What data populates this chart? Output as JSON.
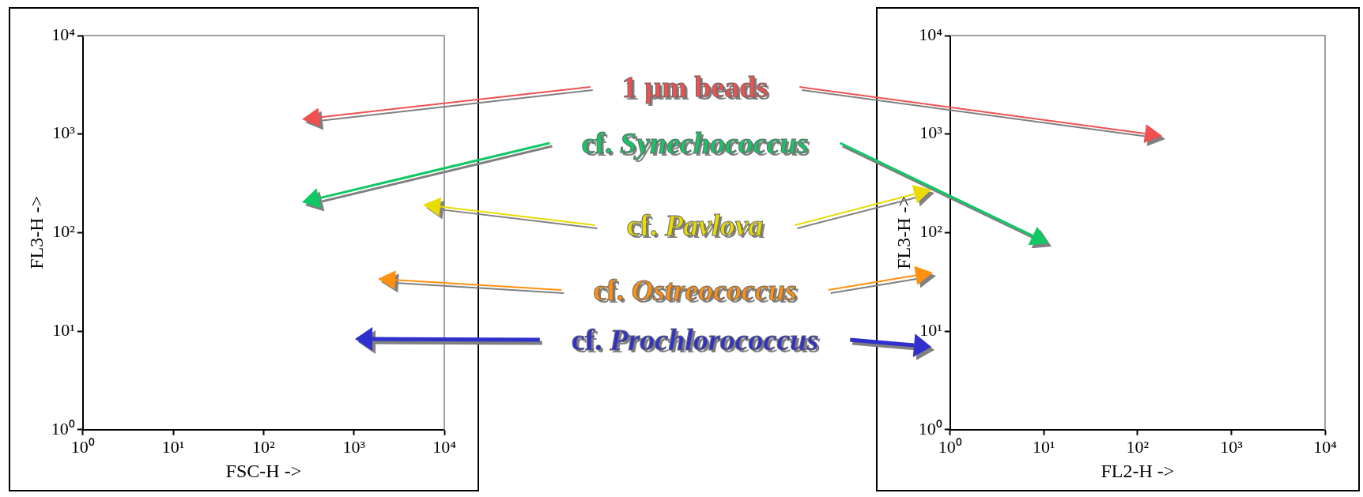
{
  "chart_data": [
    {
      "type": "scatter",
      "xlabel": "FSC-H ->",
      "ylabel": "FL3-H ->",
      "log": "xy",
      "grid": false,
      "xlim": [
        1,
        10000
      ],
      "ylim": [
        1,
        10000
      ],
      "xticks": [
        {
          "value": 1,
          "label": "10⁰"
        },
        {
          "value": 10,
          "label": "10¹"
        },
        {
          "value": 100,
          "label": "10²"
        },
        {
          "value": 1000,
          "label": "10³"
        },
        {
          "value": 10000,
          "label": "10⁴"
        }
      ],
      "yticks": [
        {
          "value": 1,
          "label": "10⁰"
        },
        {
          "value": 10,
          "label": "10¹"
        },
        {
          "value": 100,
          "label": "10²"
        },
        {
          "value": 1000,
          "label": "10³"
        },
        {
          "value": 10000,
          "label": "10⁴"
        }
      ],
      "annotations": [
        "1 µm beads",
        "cf. Synechococcus",
        "cf. Pavlova",
        "cf. Ostreococcus",
        "cf. Prochlorococcus"
      ]
    },
    {
      "type": "scatter",
      "xlabel": "FL2-H ->",
      "ylabel": "FL3-H ->",
      "log": "xy",
      "grid": false,
      "xlim": [
        1,
        10000
      ],
      "ylim": [
        1,
        10000
      ],
      "xticks": [
        {
          "value": 1,
          "label": "10⁰"
        },
        {
          "value": 10,
          "label": "10¹"
        },
        {
          "value": 100,
          "label": "10²"
        },
        {
          "value": 1000,
          "label": "10³"
        },
        {
          "value": 10000,
          "label": "10⁴"
        }
      ],
      "yticks": [
        {
          "value": 1,
          "label": "10⁰"
        },
        {
          "value": 10,
          "label": "10¹"
        },
        {
          "value": 100,
          "label": "10²"
        },
        {
          "value": 1000,
          "label": "10³"
        },
        {
          "value": 10000,
          "label": "10⁴"
        }
      ]
    }
  ]
}
